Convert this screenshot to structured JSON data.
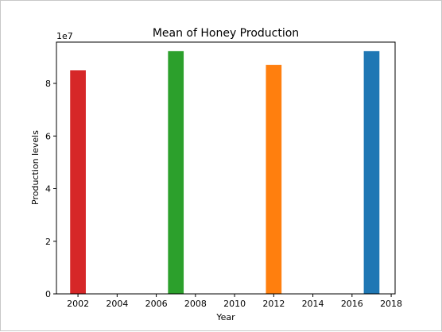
{
  "chart_data": {
    "type": "bar",
    "title": "Mean of Honey Production",
    "xlabel": "Year",
    "ylabel": "Production levels",
    "y_offset_label": "1e7",
    "y_scale": 10000000,
    "xlim": [
      2000.9,
      2018.2
    ],
    "ylim": [
      0,
      95700000
    ],
    "bar_width": 0.8,
    "x_ticks": [
      2002,
      2004,
      2006,
      2008,
      2010,
      2012,
      2014,
      2016,
      2018
    ],
    "y_ticks": [
      0,
      20000000,
      40000000,
      60000000,
      80000000
    ],
    "y_tick_labels": [
      "0",
      "2",
      "4",
      "6",
      "8"
    ],
    "grid": false,
    "bars": [
      {
        "x": 2002,
        "value": 85000000,
        "color": "#d62728"
      },
      {
        "x": 2007,
        "value": 92300000,
        "color": "#2ca02c"
      },
      {
        "x": 2012,
        "value": 87000000,
        "color": "#ff7f0e"
      },
      {
        "x": 2017,
        "value": 92300000,
        "color": "#1f77b4"
      }
    ]
  }
}
